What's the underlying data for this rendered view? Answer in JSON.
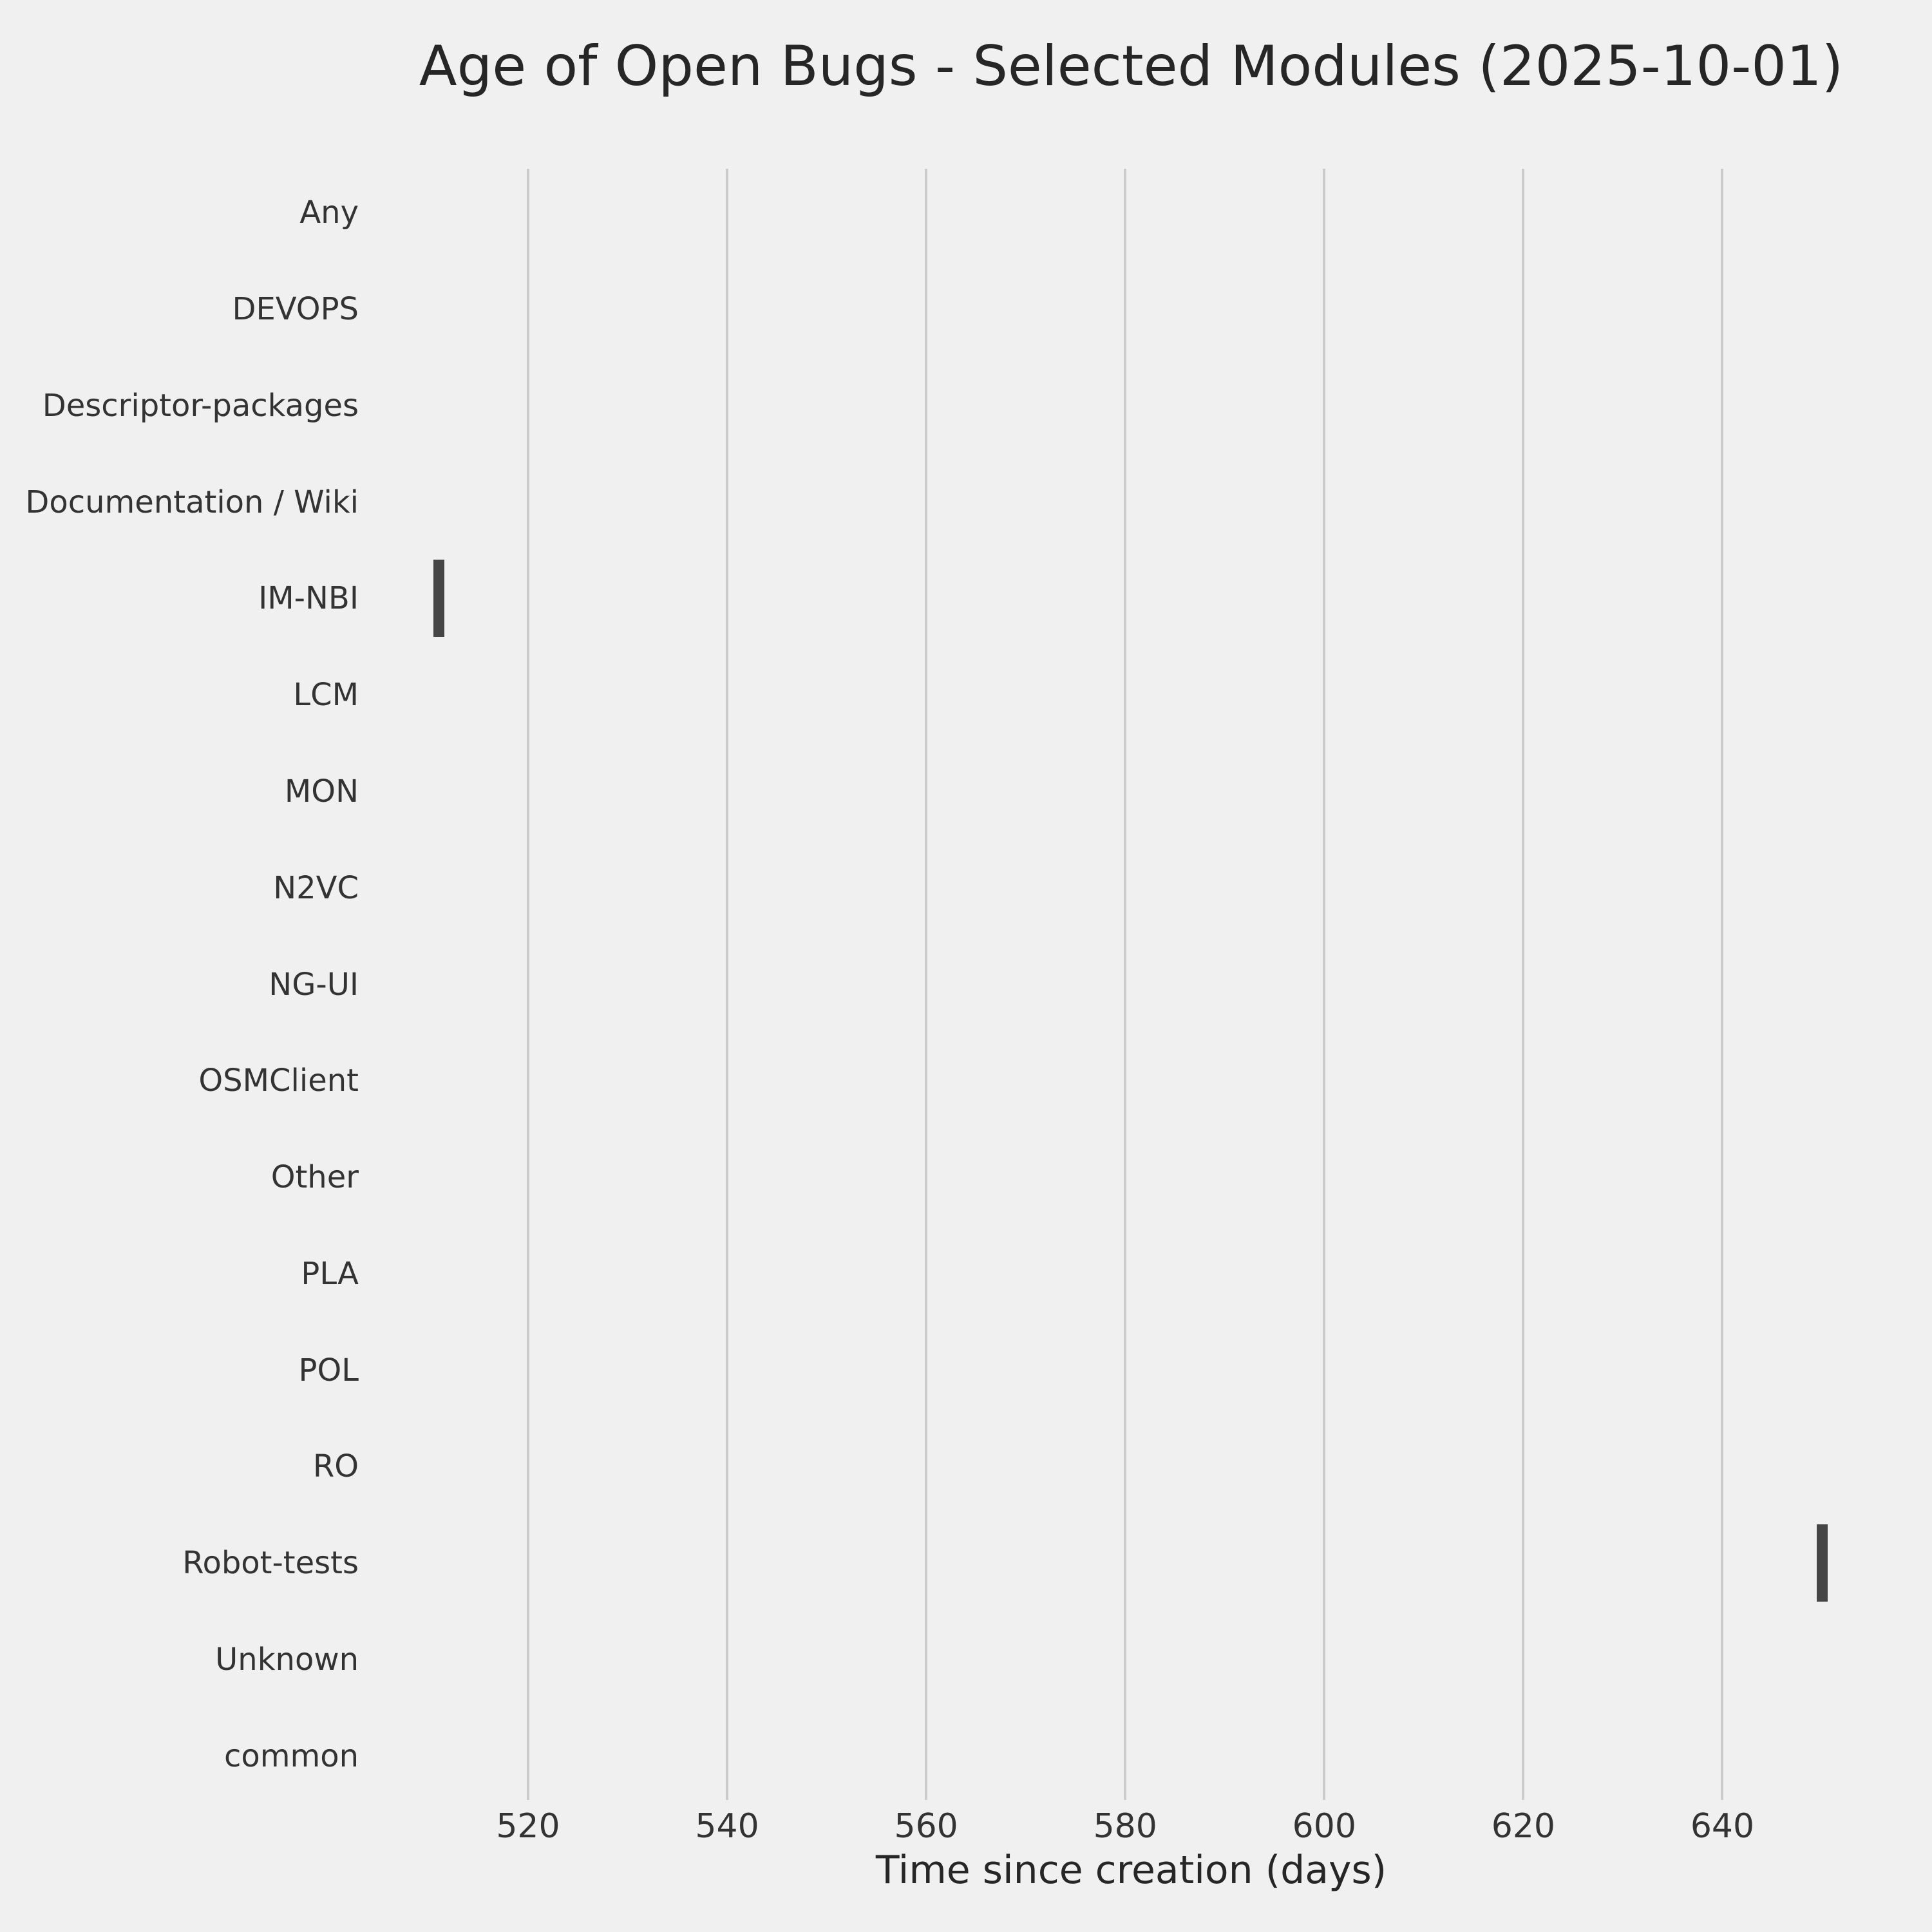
{
  "chart_data": {
    "type": "bar",
    "orientation": "horizontal",
    "title": "Age of Open Bugs - Selected Modules (2025-10-01)",
    "xlabel": "Time since creation (days)",
    "ylabel": "",
    "categories": [
      "Any",
      "DEVOPS",
      "Descriptor-packages",
      "Documentation / Wiki",
      "IM-NBI",
      "LCM",
      "MON",
      "N2VC",
      "NG-UI",
      "OSMClient",
      "Other",
      "PLA",
      "POL",
      "RO",
      "Robot-tests",
      "Unknown",
      "common"
    ],
    "values": [
      null,
      null,
      null,
      null,
      511,
      null,
      null,
      null,
      null,
      null,
      null,
      null,
      null,
      null,
      650,
      null,
      null
    ],
    "marks": [
      {
        "category": "IM-NBI",
        "index": 4,
        "start": 510.5,
        "end": 511.6,
        "age_days": 511
      },
      {
        "category": "Robot-tests",
        "index": 14,
        "start": 649.5,
        "end": 650.6,
        "age_days": 650
      }
    ],
    "x_ticks": [
      520,
      540,
      560,
      580,
      600,
      620,
      640
    ],
    "xlim": [
      503.5,
      657.7
    ],
    "grid": true,
    "legend": null,
    "colors": {
      "background": "#f0f0f0",
      "gridline": "#cbcbcb",
      "bar": "#454545",
      "title_text": "#262626",
      "label_text": "#333333"
    }
  }
}
